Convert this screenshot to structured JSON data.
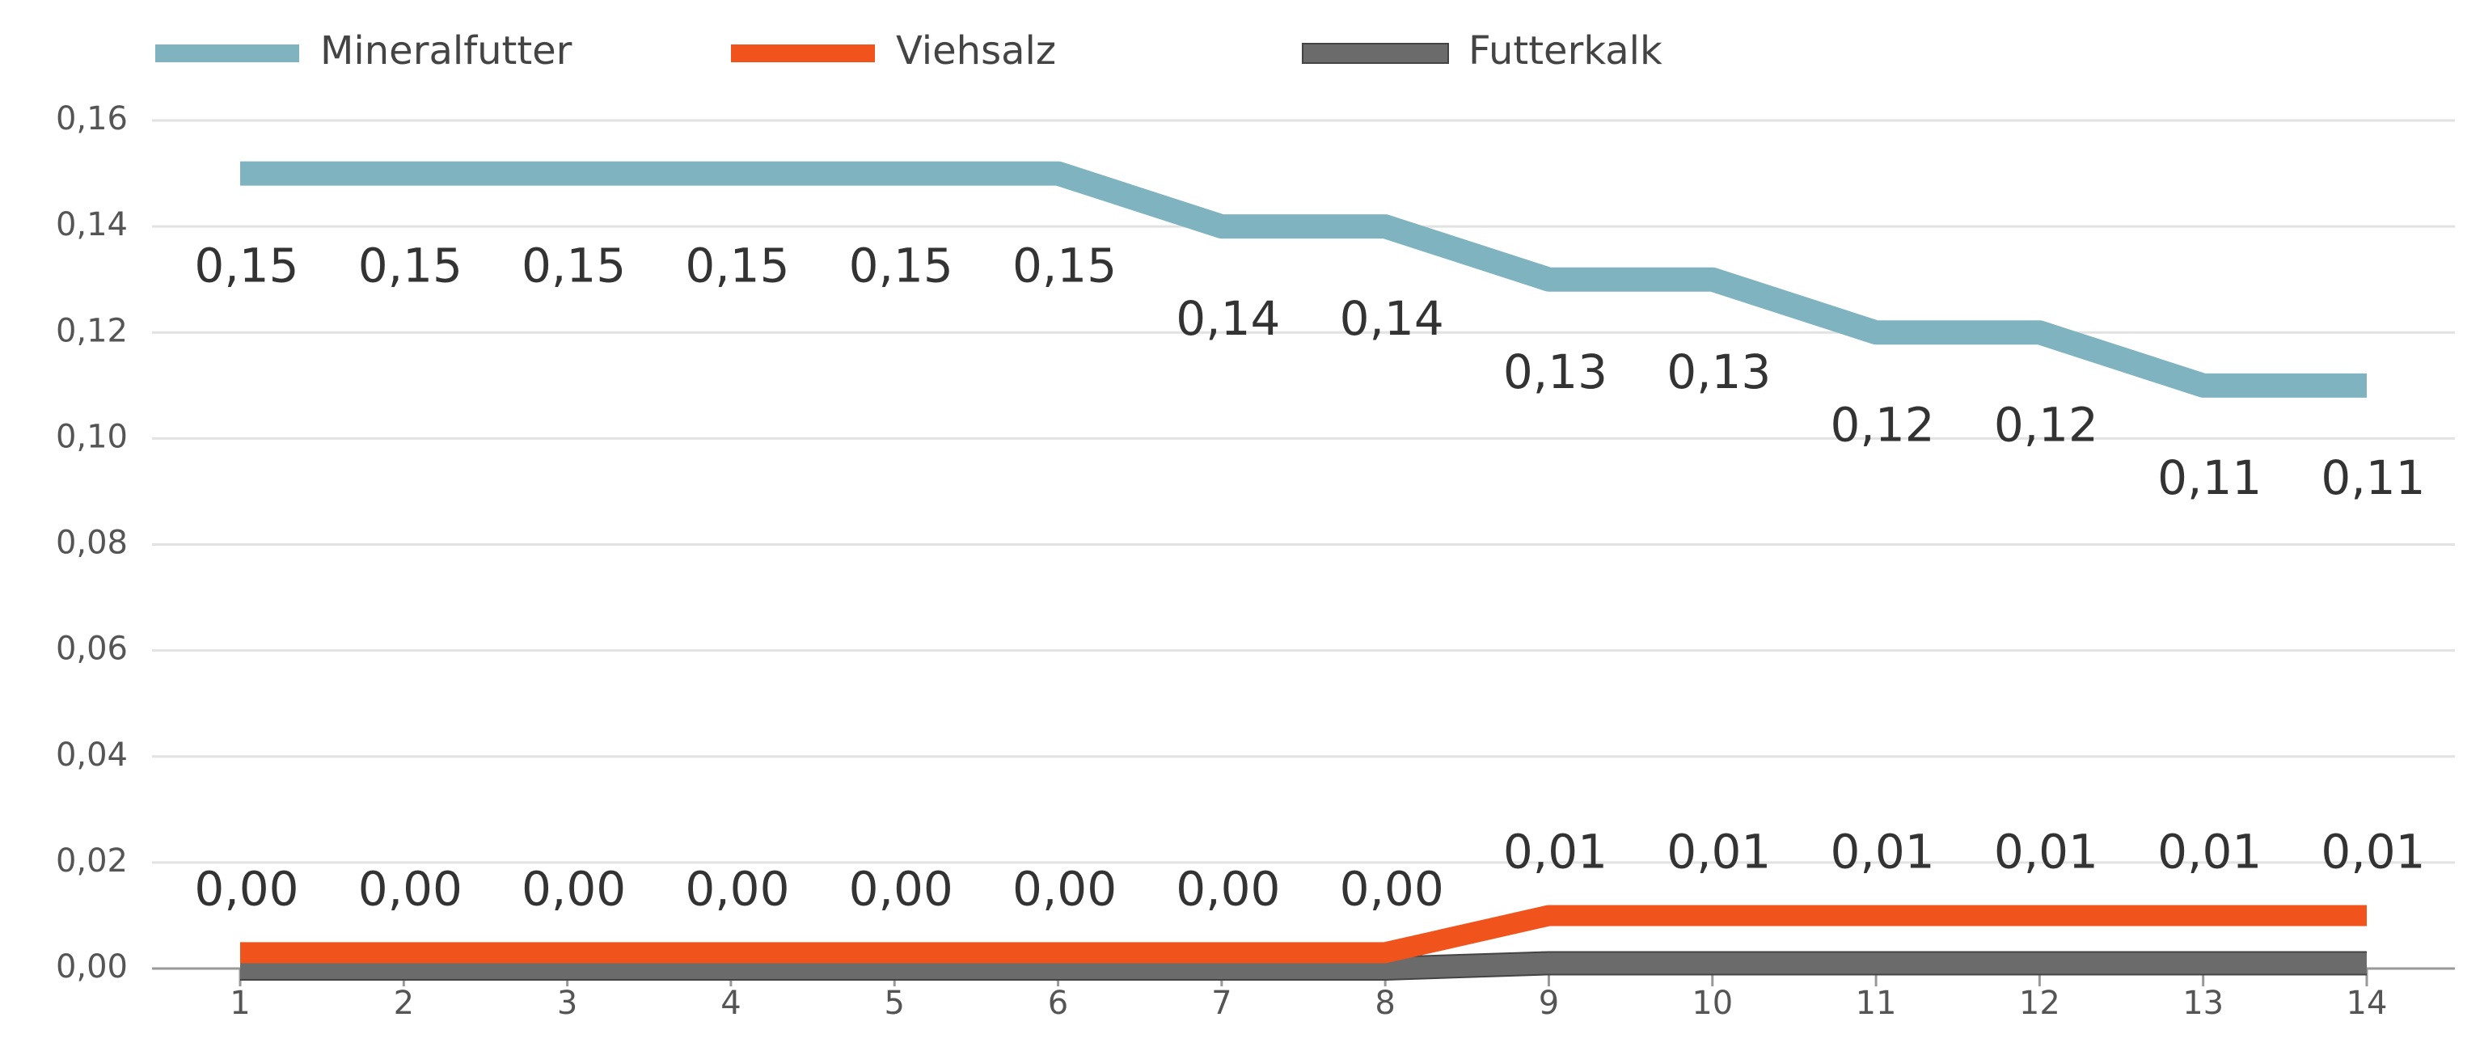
{
  "chart_data": {
    "type": "line",
    "categories": [
      "1",
      "2",
      "3",
      "4",
      "5",
      "6",
      "7",
      "8",
      "9",
      "10",
      "11",
      "12",
      "13",
      "14"
    ],
    "series": [
      {
        "name": "Mineralfutter",
        "color": "#7fb3c0",
        "values": [
          0.15,
          0.15,
          0.15,
          0.15,
          0.15,
          0.15,
          0.14,
          0.14,
          0.13,
          0.13,
          0.12,
          0.12,
          0.11,
          0.11
        ],
        "value_labels": [
          "0,15",
          "0,15",
          "0,15",
          "0,15",
          "0,15",
          "0,15",
          "0,14",
          "0,14",
          "0,13",
          "0,13",
          "0,12",
          "0,12",
          "0,11",
          "0,11"
        ]
      },
      {
        "name": "Viehsalz",
        "color": "#f0531c",
        "values": [
          0.003,
          0.003,
          0.003,
          0.003,
          0.003,
          0.003,
          0.003,
          0.003,
          0.01,
          0.01,
          0.01,
          0.01,
          0.01,
          0.01
        ],
        "value_labels": [
          "0,00",
          "0,00",
          "0,00",
          "0,00",
          "0,00",
          "0,00",
          "0,00",
          "0,00",
          "0,01",
          "0,01",
          "0,01",
          "0,01",
          "0,01",
          "0,01"
        ]
      },
      {
        "name": "Futterkalk",
        "color": "#6b6b6b",
        "values": [
          0,
          0,
          0,
          0,
          0,
          0,
          0,
          0,
          0.001,
          0.001,
          0.001,
          0.001,
          0.001,
          0.001
        ]
      }
    ],
    "ylim": [
      0,
      0.16
    ],
    "yticks": [
      {
        "value": 0,
        "label": "0,00"
      },
      {
        "value": 0.02,
        "label": "0,02"
      },
      {
        "value": 0.04,
        "label": "0,04"
      },
      {
        "value": 0.06,
        "label": "0,06"
      },
      {
        "value": 0.08,
        "label": "0,08"
      },
      {
        "value": 0.1,
        "label": "0,10"
      },
      {
        "value": 0.12,
        "label": "0,12"
      },
      {
        "value": 0.14,
        "label": "0,14"
      },
      {
        "value": 0.16,
        "label": "0,16"
      }
    ],
    "grid": true,
    "legend": "top"
  }
}
